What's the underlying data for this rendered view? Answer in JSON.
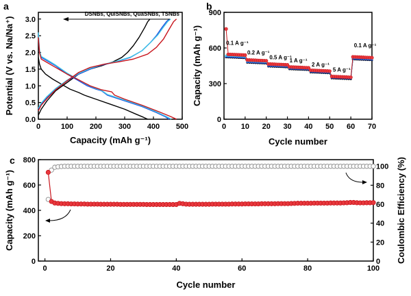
{
  "colors": {
    "DSNBs": "#000000",
    "QuiSNBs": "#1f4fe0",
    "QuaSNBs": "#3fc4e6",
    "TSNBs": "#c8161d",
    "marker_fill": "#e8383d",
    "ce_marker": "#8a8a8a"
  },
  "chart_data": [
    {
      "panel": "a",
      "type": "line",
      "xlabel": "Capacity (mAh g⁻¹)",
      "ylabel": "Potential (V vs. Na/Na⁺)",
      "xlim": [
        0,
        500
      ],
      "ylim": [
        0,
        3.2
      ],
      "xticks": [
        0,
        100,
        200,
        300,
        400,
        500
      ],
      "yticks": [
        0.0,
        0.5,
        1.0,
        1.5,
        2.0,
        2.5,
        3.0
      ],
      "legend_text": "DSNBs, QuiSNBs, QuaSNBs, TSNBs",
      "series": [
        {
          "name": "DSNBs",
          "discharge": {
            "x": [
              0,
              4,
              10,
              25,
              50,
              80,
              110,
              140,
              160,
              200,
              250,
              300,
              340,
              365,
              380
            ],
            "y": [
              1.85,
              1.65,
              1.5,
              1.35,
              1.2,
              1.05,
              0.9,
              0.8,
              0.72,
              0.6,
              0.45,
              0.3,
              0.15,
              0.06,
              0.0
            ]
          },
          "charge": {
            "x": [
              0,
              10,
              30,
              60,
              100,
              140,
              180,
              220,
              260,
              290,
              310,
              330,
              350,
              370,
              380,
              388
            ],
            "y": [
              0.12,
              0.3,
              0.55,
              0.85,
              1.1,
              1.35,
              1.5,
              1.6,
              1.72,
              1.85,
              2.0,
              2.2,
              2.45,
              2.75,
              2.92,
              3.0
            ]
          }
        },
        {
          "name": "QuiSNBs",
          "discharge": {
            "x": [
              0,
              4,
              10,
              30,
              60,
              100,
              140,
              170,
              200,
              220,
              240,
              300,
              360,
              410,
              440,
              455
            ],
            "y": [
              2.55,
              2.0,
              1.85,
              1.75,
              1.6,
              1.35,
              1.15,
              1.0,
              0.9,
              0.85,
              0.72,
              0.55,
              0.38,
              0.2,
              0.08,
              0.0
            ]
          },
          "charge": {
            "x": [
              0,
              10,
              30,
              60,
              100,
              140,
              180,
              220,
              270,
              320,
              360,
              390,
              410,
              430,
              445,
              455
            ],
            "y": [
              0.3,
              0.45,
              0.65,
              0.9,
              1.15,
              1.35,
              1.5,
              1.62,
              1.72,
              1.85,
              2.05,
              2.3,
              2.5,
              2.75,
              2.92,
              3.0
            ]
          }
        },
        {
          "name": "QuaSNBs",
          "discharge": {
            "x": [
              0,
              4,
              10,
              30,
              60,
              100,
              140,
              170,
              200,
              220,
              240,
              300,
              360,
              410,
              445,
              462
            ],
            "y": [
              2.6,
              2.05,
              1.88,
              1.78,
              1.62,
              1.38,
              1.18,
              1.03,
              0.92,
              0.86,
              0.74,
              0.57,
              0.4,
              0.22,
              0.08,
              0.0
            ]
          },
          "charge": {
            "x": [
              0,
              10,
              30,
              60,
              100,
              140,
              180,
              220,
              270,
              320,
              360,
              390,
              415,
              435,
              450,
              460
            ],
            "y": [
              0.33,
              0.48,
              0.68,
              0.92,
              1.17,
              1.37,
              1.52,
              1.63,
              1.73,
              1.86,
              2.05,
              2.3,
              2.52,
              2.76,
              2.93,
              3.0
            ]
          }
        },
        {
          "name": "TSNBs",
          "discharge": {
            "x": [
              0,
              4,
              10,
              30,
              60,
              100,
              140,
              180,
              220,
              255,
              265,
              300,
              360,
              420,
              460,
              480
            ],
            "y": [
              2.45,
              2.0,
              1.8,
              1.7,
              1.55,
              1.35,
              1.18,
              1.0,
              0.88,
              0.82,
              0.72,
              0.6,
              0.42,
              0.22,
              0.08,
              0.0
            ]
          },
          "charge": {
            "x": [
              0,
              10,
              30,
              60,
              100,
              140,
              180,
              230,
              280,
              330,
              380,
              410,
              435,
              455,
              470,
              480
            ],
            "y": [
              0.25,
              0.42,
              0.62,
              0.88,
              1.15,
              1.4,
              1.55,
              1.65,
              1.72,
              1.8,
              1.95,
              2.15,
              2.4,
              2.7,
              2.92,
              3.0
            ]
          }
        }
      ]
    },
    {
      "panel": "b",
      "type": "scatter",
      "xlabel": "Cycle number",
      "ylabel": "Capacity (mAh g⁻¹)",
      "xlim": [
        0,
        70
      ],
      "ylim": [
        0,
        900
      ],
      "xticks": [
        0,
        10,
        20,
        30,
        40,
        50,
        60,
        70
      ],
      "yticks": [
        0,
        300,
        600,
        900
      ],
      "rate_labels": [
        {
          "text": "0.1 A g⁻¹",
          "x": 1,
          "y": 625
        },
        {
          "text": "0.2 A g⁻¹",
          "x": 11,
          "y": 545
        },
        {
          "text": "0.5 A g⁻¹",
          "x": 21.5,
          "y": 505
        },
        {
          "text": "1 A g⁻¹",
          "x": 31,
          "y": 480
        },
        {
          "text": "2 A g⁻¹",
          "x": 41.5,
          "y": 445
        },
        {
          "text": "5 A g⁻¹",
          "x": 51.5,
          "y": 400
        },
        {
          "text": "0.1 A g⁻¹",
          "x": 61.5,
          "y": 605
        }
      ],
      "steps": [
        {
          "start": 1,
          "end": 10,
          "DSNBs": 515,
          "QuiSNBs": 520,
          "QuaSNBs": 528,
          "TSNBs": 540
        },
        {
          "start": 11,
          "end": 20,
          "DSNBs": 470,
          "QuiSNBs": 475,
          "QuaSNBs": 482,
          "TSNBs": 492
        },
        {
          "start": 21,
          "end": 30,
          "DSNBs": 438,
          "QuiSNBs": 443,
          "QuaSNBs": 450,
          "TSNBs": 458
        },
        {
          "start": 31,
          "end": 40,
          "DSNBs": 415,
          "QuiSNBs": 420,
          "QuaSNBs": 426,
          "TSNBs": 433
        },
        {
          "start": 41,
          "end": 50,
          "DSNBs": 388,
          "QuiSNBs": 393,
          "QuaSNBs": 398,
          "TSNBs": 405
        },
        {
          "start": 51,
          "end": 60,
          "DSNBs": 338,
          "QuiSNBs": 343,
          "QuaSNBs": 348,
          "TSNBs": 353
        },
        {
          "start": 61,
          "end": 70,
          "DSNBs": 498,
          "QuiSNBs": 503,
          "QuaSNBs": 510,
          "TSNBs": 518
        }
      ],
      "first_cycle": {
        "x": 1,
        "y": 760
      }
    },
    {
      "panel": "c",
      "type": "scatter",
      "xlabel": "Cycle number",
      "ylabel": "Capacity (mAh g⁻¹)",
      "y2label": "Coulombic Efficiency (%)",
      "xlim": [
        -2,
        100
      ],
      "ylim": [
        0,
        800
      ],
      "y2lim": [
        0,
        107
      ],
      "xticks": [
        0,
        20,
        40,
        60,
        80,
        100
      ],
      "yticks": [
        0,
        200,
        400,
        600,
        800
      ],
      "y2ticks": [
        0,
        20,
        40,
        60,
        80,
        100
      ],
      "capacity": {
        "x": [
          1,
          2,
          3,
          4,
          5,
          6,
          7,
          8,
          9,
          10,
          11,
          12,
          13,
          14,
          15,
          16,
          17,
          18,
          19,
          20,
          21,
          22,
          23,
          24,
          25,
          26,
          27,
          28,
          29,
          30,
          31,
          32,
          33,
          34,
          35,
          36,
          37,
          38,
          39,
          40,
          41,
          42,
          43,
          44,
          45,
          46,
          47,
          48,
          49,
          50,
          51,
          52,
          53,
          54,
          55,
          56,
          57,
          58,
          59,
          60,
          61,
          62,
          63,
          64,
          65,
          66,
          67,
          68,
          69,
          70,
          71,
          72,
          73,
          74,
          75,
          76,
          77,
          78,
          79,
          80,
          81,
          82,
          83,
          84,
          85,
          86,
          87,
          88,
          89,
          90,
          91,
          92,
          93,
          94,
          95,
          96,
          97,
          98,
          99,
          100
        ],
        "y": [
          700,
          470,
          458,
          455,
          453,
          452,
          452,
          451,
          451,
          450,
          450,
          450,
          449,
          449,
          449,
          449,
          448,
          448,
          448,
          448,
          448,
          448,
          447,
          447,
          447,
          447,
          447,
          447,
          447,
          447,
          446,
          446,
          446,
          446,
          446,
          446,
          446,
          446,
          446,
          446,
          455,
          452,
          449,
          448,
          448,
          448,
          448,
          448,
          448,
          448,
          449,
          449,
          449,
          449,
          449,
          449,
          450,
          450,
          450,
          450,
          451,
          451,
          451,
          451,
          451,
          452,
          452,
          452,
          452,
          452,
          453,
          453,
          453,
          453,
          454,
          455,
          456,
          456,
          456,
          456,
          456,
          457,
          457,
          457,
          457,
          457,
          458,
          458,
          458,
          458,
          459,
          460,
          462,
          462,
          460,
          459,
          459,
          460,
          460,
          461
        ]
      },
      "efficiency": {
        "x": [
          1,
          2,
          3,
          4,
          5,
          6,
          7,
          8,
          9,
          10,
          11,
          12,
          13,
          14,
          15,
          16,
          17,
          18,
          19,
          20,
          21,
          22,
          23,
          24,
          25,
          26,
          27,
          28,
          29,
          30,
          31,
          32,
          33,
          34,
          35,
          36,
          37,
          38,
          39,
          40,
          41,
          42,
          43,
          44,
          45,
          46,
          47,
          48,
          49,
          50,
          51,
          52,
          53,
          54,
          55,
          56,
          57,
          58,
          59,
          60,
          61,
          62,
          63,
          64,
          65,
          66,
          67,
          68,
          69,
          70,
          71,
          72,
          73,
          74,
          75,
          76,
          77,
          78,
          79,
          80,
          81,
          82,
          83,
          84,
          85,
          86,
          87,
          88,
          89,
          90,
          91,
          92,
          93,
          94,
          95,
          96,
          97,
          98,
          99,
          100
        ],
        "y": [
          65,
          96,
          99,
          99.5,
          99.8,
          100,
          100,
          100,
          100,
          100,
          100,
          100,
          100,
          100,
          100,
          100,
          100,
          100,
          100,
          100,
          100,
          100,
          100,
          100,
          100,
          100,
          100,
          100,
          100,
          100,
          100,
          100,
          100,
          100,
          100,
          100,
          100,
          100,
          100,
          100,
          100,
          100,
          100,
          100,
          100,
          100,
          100,
          100,
          100,
          100,
          100,
          100,
          100,
          100,
          100,
          100,
          100,
          100,
          100,
          100,
          100,
          100,
          100,
          100,
          100,
          100,
          100,
          100,
          100,
          100,
          100,
          100,
          100,
          100,
          100,
          100,
          100,
          100,
          100,
          100,
          100,
          100,
          100,
          100,
          100,
          100,
          100,
          100,
          100,
          100,
          100,
          100,
          100,
          100,
          100,
          100,
          100,
          100,
          100,
          100
        ]
      }
    }
  ]
}
